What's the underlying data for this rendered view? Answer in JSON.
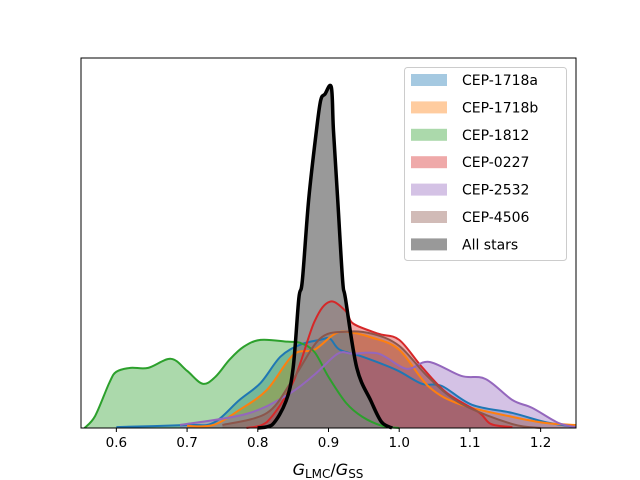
{
  "chart_data": {
    "type": "area",
    "title": "",
    "xlabel": {
      "main1": "G",
      "sub1": "LMC",
      "sep": "/",
      "main2": "G",
      "sub2": "SS"
    },
    "ylabel": "",
    "xlim": [
      0.55,
      1.25
    ],
    "ylim": [
      0,
      12.3
    ],
    "y_ticks_shown": false,
    "grid": false,
    "legend_position": "top-right",
    "x_ticks": [
      "0.6",
      "0.7",
      "0.8",
      "0.9",
      "1.0",
      "1.1",
      "1.2"
    ],
    "x_tick_values": [
      0.6,
      0.7,
      0.8,
      0.9,
      1.0,
      1.1,
      1.2
    ],
    "series": [
      {
        "name": "CEP-1718a",
        "color": "#1f77b4",
        "x": [
          0.6,
          0.7,
          0.737,
          0.774,
          0.804,
          0.832,
          0.86,
          0.888,
          0.902,
          0.916,
          0.948,
          0.996,
          1.032,
          1.06,
          1.103,
          1.16,
          1.206,
          1.25
        ],
        "y": [
          0.03,
          0.1,
          0.17,
          0.93,
          1.5,
          2.37,
          2.77,
          2.93,
          2.97,
          2.6,
          2.37,
          1.93,
          1.47,
          1.4,
          0.77,
          0.5,
          0.2,
          0.03
        ]
      },
      {
        "name": "CEP-1718b",
        "color": "#ff7f0e",
        "x": [
          0.7,
          0.737,
          0.774,
          0.813,
          0.85,
          0.88,
          0.907,
          0.925,
          0.962,
          1.0,
          1.042,
          1.088,
          1.16,
          1.206,
          1.25
        ],
        "y": [
          0.07,
          0.1,
          0.6,
          1.27,
          2.43,
          2.6,
          3.1,
          3.2,
          3.0,
          2.6,
          1.37,
          0.77,
          0.37,
          0.17,
          0.1
        ]
      },
      {
        "name": "CEP-1812",
        "color": "#2ca02c",
        "x": [
          0.555,
          0.57,
          0.59,
          0.6,
          0.62,
          0.645,
          0.677,
          0.7,
          0.722,
          0.74,
          0.76,
          0.78,
          0.804,
          0.842,
          0.86,
          0.88,
          0.9,
          0.925,
          0.948,
          0.976,
          1.0
        ],
        "y": [
          0,
          0.4,
          1.5,
          1.87,
          2.0,
          2.0,
          2.3,
          1.9,
          1.47,
          1.7,
          2.27,
          2.7,
          2.93,
          2.87,
          2.83,
          2.53,
          1.7,
          0.83,
          0.37,
          0.07,
          0
        ]
      },
      {
        "name": "CEP-0227",
        "color": "#d62728",
        "x": [
          0.784,
          0.813,
          0.85,
          0.88,
          0.902,
          0.925,
          0.935,
          0.971,
          1.0,
          1.032,
          1.067,
          1.112,
          1.13,
          1.16
        ],
        "y": [
          0,
          0.2,
          1.53,
          3.53,
          4.2,
          3.87,
          3.47,
          3.13,
          2.93,
          2.03,
          1.17,
          0.53,
          0.13,
          0.03
        ]
      },
      {
        "name": "CEP-2532",
        "color": "#9467bd",
        "x": [
          0.69,
          0.784,
          0.842,
          0.88,
          0.913,
          0.934,
          0.971,
          1.01,
          1.042,
          1.088,
          1.122,
          1.16,
          1.188,
          1.225,
          1.25
        ],
        "y": [
          0.1,
          0.47,
          1.1,
          1.77,
          2.47,
          2.47,
          2.47,
          1.97,
          2.2,
          1.73,
          1.63,
          0.93,
          0.67,
          0.17,
          0.03
        ]
      },
      {
        "name": "CEP-4506",
        "color": "#8c564b",
        "x": [
          0.75,
          0.813,
          0.85,
          0.888,
          0.925,
          0.962,
          1.0,
          1.042,
          1.088,
          1.16,
          1.2
        ],
        "y": [
          0.1,
          0.5,
          1.63,
          2.97,
          3.2,
          3.13,
          2.73,
          1.67,
          0.8,
          0.13,
          0
        ]
      },
      {
        "name": "All stars",
        "color": "#000000",
        "fill": "#7f7f7f",
        "x": [
          0.8,
          0.82,
          0.84,
          0.85,
          0.858,
          0.863,
          0.872,
          0.883,
          0.889,
          0.895,
          0.904,
          0.907,
          0.913,
          0.92,
          0.924,
          0.94,
          0.96,
          0.975,
          0.99
        ],
        "y": [
          0,
          0.1,
          0.9,
          2.0,
          4.3,
          4.9,
          7.6,
          9.9,
          10.9,
          11.1,
          11.33,
          9.9,
          7.6,
          4.9,
          4.3,
          2.0,
          0.9,
          0.2,
          0
        ]
      }
    ]
  }
}
